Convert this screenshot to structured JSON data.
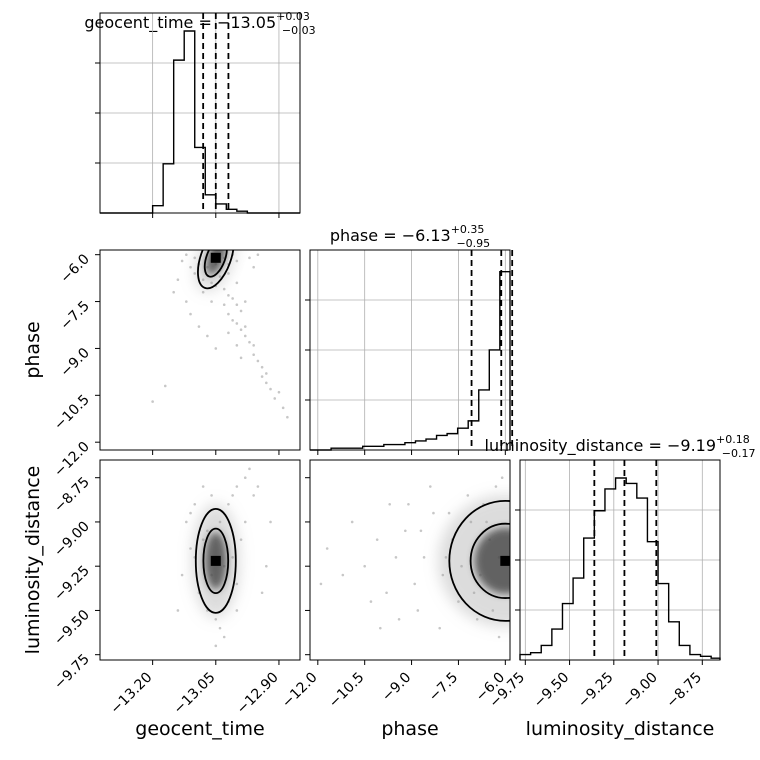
{
  "chart_data": {
    "type": "corner",
    "parameters": [
      "geocent_time",
      "phase",
      "luminosity_distance"
    ],
    "titles": [
      {
        "parameter": "geocent_time",
        "prefix": "geocent_time = ",
        "median": "−13.05",
        "plus": "+0.03",
        "minus": "−0.03"
      },
      {
        "parameter": "phase",
        "prefix": "phase = ",
        "median": "−6.13",
        "plus": "+0.35",
        "minus": "−0.95"
      },
      {
        "parameter": "luminosity_distance",
        "prefix": "luminosity_distance = ",
        "median": "−9.19",
        "plus": "+0.18",
        "minus": "−0.17"
      }
    ],
    "axis_labels": {
      "x": [
        "geocent_time",
        "phase",
        "luminosity_distance"
      ],
      "y": [
        "phase",
        "luminosity_distance"
      ]
    },
    "ranges": {
      "geocent_time": [
        -13.325,
        -12.85
      ],
      "phase": [
        -12.25,
        -5.85
      ],
      "luminosity_distance": [
        -9.78,
        -8.65
      ]
    },
    "ticks": {
      "geocent_time_x": {
        "values": [
          -13.2,
          -13.05,
          -12.9
        ],
        "labels": [
          "−13.20",
          "−13.05",
          "−12.90"
        ]
      },
      "phase_x": {
        "values": [
          -12.0,
          -10.5,
          -9.0,
          -7.5,
          -6.0
        ],
        "labels": [
          "−12.0",
          "−10.5",
          "−9.0",
          "−7.5",
          "−6.0"
        ]
      },
      "luminosity_distance_x": {
        "values": [
          -9.75,
          -9.5,
          -9.25,
          -9.0,
          -8.75
        ],
        "labels": [
          "−9.75",
          "−9.50",
          "−9.25",
          "−9.00",
          "−8.75"
        ]
      },
      "phase_y": {
        "values": [
          -6.0,
          -7.5,
          -9.0,
          -10.5,
          -12.0
        ],
        "labels": [
          "−6.0",
          "−7.5",
          "−9.0",
          "−10.5",
          "−12.0"
        ]
      },
      "luminosity_distance_y": {
        "values": [
          -8.75,
          -9.0,
          -9.25,
          -9.5,
          -9.75
        ],
        "labels": [
          "−8.75",
          "−9.00",
          "−9.25",
          "−9.50",
          "−9.75"
        ]
      }
    },
    "quantiles": {
      "geocent_time": [
        -13.08,
        -13.05,
        -13.02
      ],
      "phase": [
        -7.08,
        -6.13,
        -5.78
      ],
      "luminosity_distance": [
        -9.36,
        -9.19,
        -9.01
      ]
    },
    "histograms": {
      "geocent_time": {
        "bin_edges": [
          -13.325,
          -13.3,
          -13.275,
          -13.25,
          -13.225,
          -13.2,
          -13.175,
          -13.15,
          -13.125,
          -13.1,
          -13.075,
          -13.05,
          -13.025,
          -13.0,
          -12.975,
          -12.95,
          -12.925,
          -12.9,
          -12.875,
          -12.85
        ],
        "counts": [
          0,
          0,
          0,
          0,
          0,
          0.04,
          0.27,
          0.84,
          1.0,
          0.36,
          0.1,
          0.05,
          0.02,
          0.01,
          0,
          0,
          0,
          0,
          0
        ]
      },
      "phase": {
        "bin_edges": [
          -12.25,
          -11.9125,
          -11.575,
          -11.2375,
          -10.9,
          -10.5625,
          -10.225,
          -9.8875,
          -9.55,
          -9.2125,
          -8.875,
          -8.5375,
          -8.2,
          -7.8625,
          -7.525,
          -7.1875,
          -6.85,
          -6.5125,
          -6.175,
          -5.85
        ],
        "counts": [
          0,
          0,
          0.01,
          0.01,
          0.01,
          0.02,
          0.02,
          0.03,
          0.03,
          0.04,
          0.05,
          0.06,
          0.08,
          0.09,
          0.12,
          0.16,
          0.33,
          0.55,
          0.98
        ]
      },
      "luminosity_distance": {
        "bin_edges": [
          -9.78,
          -9.72,
          -9.66,
          -9.6,
          -9.54,
          -9.48,
          -9.42,
          -9.36,
          -9.3,
          -9.24,
          -9.18,
          -9.12,
          -9.06,
          -9.0,
          -8.94,
          -8.88,
          -8.82,
          -8.76,
          -8.7,
          -8.65
        ],
        "counts": [
          0.03,
          0.04,
          0.08,
          0.17,
          0.31,
          0.45,
          0.67,
          0.82,
          0.94,
          1.0,
          0.97,
          0.89,
          0.65,
          0.42,
          0.21,
          0.08,
          0.03,
          0.02,
          0.01
        ]
      }
    },
    "scatter_2d": {
      "phase_vs_geocent_time": {
        "color": "#000000",
        "core": {
          "geocent_time": -13.05,
          "phase": -6.1
        },
        "samples": [
          [
            -13.12,
            -6.0
          ],
          [
            -13.1,
            -6.1
          ],
          [
            -13.09,
            -6.3
          ],
          [
            -13.07,
            -6.4
          ],
          [
            -13.06,
            -6.2
          ],
          [
            -13.04,
            -6.5
          ],
          [
            -13.03,
            -6.1
          ],
          [
            -13.02,
            -6.3
          ],
          [
            -13.01,
            -6.0
          ],
          [
            -13.0,
            -6.2
          ],
          [
            -13.1,
            -6.6
          ],
          [
            -13.08,
            -6.8
          ],
          [
            -13.06,
            -6.9
          ],
          [
            -13.05,
            -7.0
          ],
          [
            -13.04,
            -6.7
          ],
          [
            -13.03,
            -7.1
          ],
          [
            -13.02,
            -7.3
          ],
          [
            -13.01,
            -7.4
          ],
          [
            -13.0,
            -7.6
          ],
          [
            -12.99,
            -7.8
          ],
          [
            -13.03,
            -7.6
          ],
          [
            -13.02,
            -7.9
          ],
          [
            -13.01,
            -8.1
          ],
          [
            -13.0,
            -8.2
          ],
          [
            -12.99,
            -8.4
          ],
          [
            -12.98,
            -8.3
          ],
          [
            -12.98,
            -8.6
          ],
          [
            -12.97,
            -8.8
          ],
          [
            -12.96,
            -8.9
          ],
          [
            -12.96,
            -9.2
          ],
          [
            -12.95,
            -9.4
          ],
          [
            -12.94,
            -9.6
          ],
          [
            -12.94,
            -9.9
          ],
          [
            -12.93,
            -10.1
          ],
          [
            -12.92,
            -10.3
          ],
          [
            -12.91,
            -10.6
          ],
          [
            -12.89,
            -10.9
          ],
          [
            -13.14,
            -6.8
          ],
          [
            -13.15,
            -7.2
          ],
          [
            -13.12,
            -7.5
          ],
          [
            -13.11,
            -7.9
          ],
          [
            -13.09,
            -8.3
          ],
          [
            -13.07,
            -8.6
          ],
          [
            -13.05,
            -9.0
          ],
          [
            -13.2,
            -10.7
          ],
          [
            -13.17,
            -10.2
          ],
          [
            -12.97,
            -6.1
          ],
          [
            -12.96,
            -6.4
          ],
          [
            -12.95,
            -6.0
          ],
          [
            -13.0,
            -8.9
          ],
          [
            -12.99,
            -9.3
          ],
          [
            -13.02,
            -8.5
          ],
          [
            -13.06,
            -7.5
          ],
          [
            -13.08,
            -7.2
          ],
          [
            -13.13,
            -6.2
          ],
          [
            -13.11,
            -6.4
          ],
          [
            -12.93,
            -9.8
          ],
          [
            -12.9,
            -10.4
          ],
          [
            -12.88,
            -11.2
          ],
          [
            -13.05,
            -6.3
          ],
          [
            -13.04,
            -6.0
          ],
          [
            -13.02,
            -6.6
          ],
          [
            -13.0,
            -6.9
          ],
          [
            -12.98,
            -7.5
          ]
        ]
      },
      "luminosity_distance_vs_geocent_time": {
        "color": "#000000",
        "core": {
          "geocent_time": -13.05,
          "luminosity_distance": -9.22
        },
        "samples": [
          [
            -13.1,
            -9.2
          ],
          [
            -13.08,
            -9.1
          ],
          [
            -13.06,
            -9.3
          ],
          [
            -13.04,
            -9.0
          ],
          [
            -13.03,
            -9.25
          ],
          [
            -13.02,
            -8.9
          ],
          [
            -13.01,
            -8.85
          ],
          [
            -13.0,
            -8.8
          ],
          [
            -12.98,
            -8.75
          ],
          [
            -12.97,
            -8.7
          ],
          [
            -13.09,
            -9.4
          ],
          [
            -13.07,
            -9.5
          ],
          [
            -13.05,
            -9.55
          ],
          [
            -13.04,
            -9.6
          ],
          [
            -13.12,
            -9.0
          ],
          [
            -13.11,
            -8.95
          ],
          [
            -13.1,
            -8.9
          ],
          [
            -13.13,
            -9.3
          ],
          [
            -13.02,
            -9.45
          ],
          [
            -13.0,
            -9.35
          ],
          [
            -12.99,
            -9.1
          ],
          [
            -12.98,
            -9.0
          ],
          [
            -12.96,
            -8.85
          ],
          [
            -12.95,
            -8.8
          ],
          [
            -13.06,
            -8.85
          ],
          [
            -13.08,
            -8.8
          ],
          [
            -13.05,
            -9.7
          ],
          [
            -13.03,
            -9.65
          ],
          [
            -13.14,
            -9.5
          ],
          [
            -12.93,
            -9.25
          ],
          [
            -12.94,
            -9.4
          ],
          [
            -12.92,
            -9.0
          ],
          [
            -13.11,
            -9.15
          ],
          [
            -13.07,
            -9.05
          ],
          [
            -13.01,
            -9.2
          ],
          [
            -13.0,
            -9.5
          ]
        ]
      },
      "luminosity_distance_vs_phase": {
        "color": "#000000",
        "core": {
          "phase": -6.0,
          "luminosity_distance": -9.22
        },
        "samples": [
          [
            -6.2,
            -9.2
          ],
          [
            -6.5,
            -9.1
          ],
          [
            -6.8,
            -9.3
          ],
          [
            -7.1,
            -9.0
          ],
          [
            -7.4,
            -9.25
          ],
          [
            -7.7,
            -9.1
          ],
          [
            -8.0,
            -9.3
          ],
          [
            -8.3,
            -8.95
          ],
          [
            -8.6,
            -9.2
          ],
          [
            -8.9,
            -9.35
          ],
          [
            -9.2,
            -9.05
          ],
          [
            -9.5,
            -9.2
          ],
          [
            -9.8,
            -9.4
          ],
          [
            -10.1,
            -9.1
          ],
          [
            -10.5,
            -9.25
          ],
          [
            -10.9,
            -9.0
          ],
          [
            -11.2,
            -9.3
          ],
          [
            -6.3,
            -8.8
          ],
          [
            -6.7,
            -8.9
          ],
          [
            -7.2,
            -8.85
          ],
          [
            -7.8,
            -8.95
          ],
          [
            -8.4,
            -8.8
          ],
          [
            -9.1,
            -8.9
          ],
          [
            -6.4,
            -9.5
          ],
          [
            -6.9,
            -9.55
          ],
          [
            -7.5,
            -9.45
          ],
          [
            -8.1,
            -9.6
          ],
          [
            -8.8,
            -9.5
          ],
          [
            -9.4,
            -9.55
          ],
          [
            -10.0,
            -9.6
          ],
          [
            -6.1,
            -8.75
          ],
          [
            -6.2,
            -9.65
          ],
          [
            -11.7,
            -9.15
          ],
          [
            -11.9,
            -9.35
          ],
          [
            -6.6,
            -9.0
          ],
          [
            -7.0,
            -9.4
          ],
          [
            -7.9,
            -9.2
          ],
          [
            -8.7,
            -9.05
          ],
          [
            -9.7,
            -8.9
          ],
          [
            -10.3,
            -9.45
          ]
        ]
      }
    },
    "grid": true,
    "line_color": "#000000"
  }
}
